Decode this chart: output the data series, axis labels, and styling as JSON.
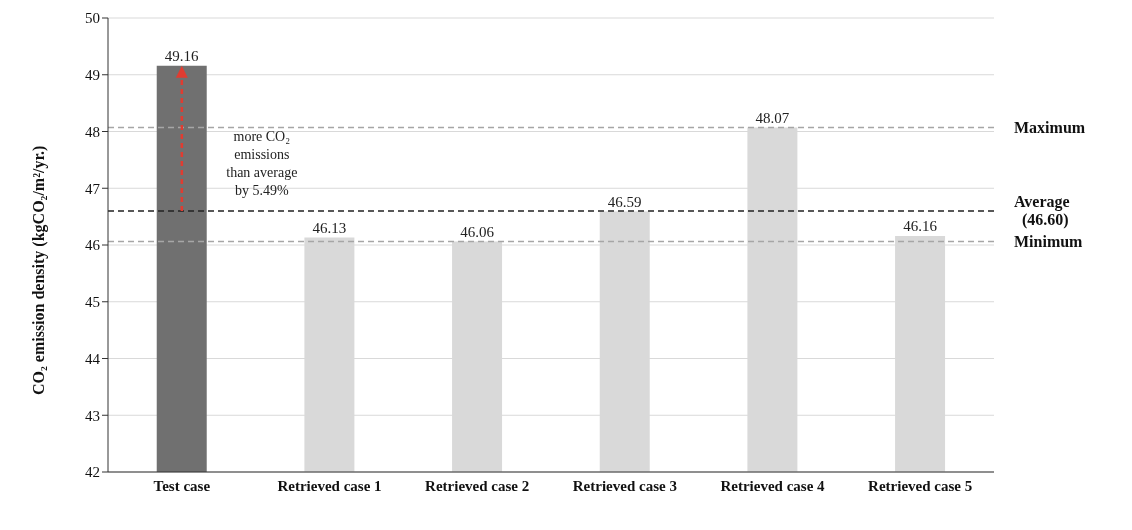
{
  "chart_data": {
    "type": "bar",
    "ylabel": "CO₂ emission density (kgCO₂/m²/yr.)",
    "categories": [
      "Test case",
      "Retrieved case 1",
      "Retrieved case 2",
      "Retrieved case 3",
      "Retrieved case 4",
      "Retrieved case 5"
    ],
    "values": [
      49.16,
      46.13,
      46.06,
      46.59,
      48.07,
      46.16
    ],
    "colors": [
      "#707070",
      "#d9d9d9",
      "#d9d9d9",
      "#d9d9d9",
      "#d9d9d9",
      "#d9d9d9"
    ],
    "ylim": [
      42,
      50
    ],
    "yticks": [
      42,
      43,
      44,
      45,
      46,
      47,
      48,
      49,
      50
    ],
    "grid": "y",
    "data_labels": true,
    "ref_lines": [
      {
        "axis": "y",
        "value": 48.07,
        "label": "Maximum",
        "color": "#a6a6a6",
        "line_style": "dashed"
      },
      {
        "axis": "y",
        "value": 46.6,
        "label": "Average\n(46.60)",
        "color": "#222222",
        "line_style": "dashed"
      },
      {
        "axis": "y",
        "value": 46.06,
        "label": "Minimum",
        "color": "#a6a6a6",
        "line_style": "dashed"
      }
    ],
    "annotations": [
      "more CO₂\nemissions\nthan average\nby 5.49%"
    ]
  }
}
